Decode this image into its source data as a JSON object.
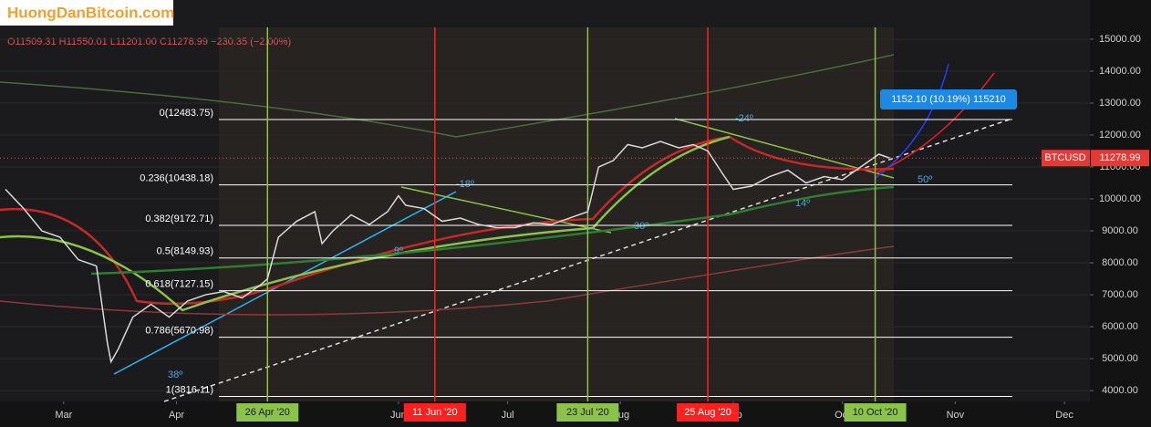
{
  "logo": "HuongDanBitcoin.com",
  "chart_data": {
    "type": "line",
    "title": "O11509.31 H11550.01 L11201.00 C11278.99 −230.35 (−2.00%)",
    "symbol": "BTCUSD",
    "last_price": {
      "value": 11278.99,
      "label": "11278.99"
    },
    "x": [
      45,
      50,
      55,
      60,
      65,
      70,
      73,
      74,
      76,
      80,
      85,
      90,
      95,
      100,
      105,
      110,
      115,
      117,
      120,
      125,
      130,
      132,
      135,
      140,
      145,
      150,
      153,
      155,
      160,
      165,
      170,
      175,
      180,
      185,
      190,
      195,
      200,
      205,
      208,
      212,
      216,
      220,
      225,
      230,
      234,
      238,
      242,
      245,
      250,
      255,
      260,
      265,
      270,
      275,
      280,
      285,
      288
    ],
    "series": [
      {
        "color": "#d9d9d9",
        "values": [
          10300,
          9700,
          9000,
          8800,
          8100,
          7900,
          5500,
          4900,
          5300,
          6300,
          6700,
          6300,
          6800,
          7000,
          7100,
          6900,
          7300,
          7500,
          8800,
          9300,
          9600,
          8600,
          9000,
          9500,
          9200,
          9600,
          10100,
          9800,
          9700,
          9300,
          9400,
          9200,
          9100,
          9100,
          9250,
          9200,
          9400,
          9600,
          11000,
          11200,
          11700,
          11600,
          11800,
          11600,
          11700,
          11500,
          10800,
          10300,
          10400,
          10700,
          10900,
          10500,
          10700,
          10600,
          11000,
          11400,
          11278.99
        ]
      }
    ],
    "xlim": [
      43.5,
      343
    ],
    "xticks": [
      {
        "value": 61,
        "label": "Mar"
      },
      {
        "value": 92,
        "label": "Apr"
      },
      {
        "value": 153,
        "label": "Jun"
      },
      {
        "value": 183,
        "label": "Jul"
      },
      {
        "value": 214,
        "label": "Aug"
      },
      {
        "value": 245,
        "label": "Sep"
      },
      {
        "value": 275,
        "label": "Oct"
      },
      {
        "value": 306,
        "label": "Nov"
      },
      {
        "value": 336,
        "label": "Dec"
      }
    ],
    "ylim": [
      3660,
      15370
    ],
    "yticks": [
      {
        "value": 4000,
        "label": "4000.00"
      },
      {
        "value": 5000,
        "label": "5000.00"
      },
      {
        "value": 6000,
        "label": "6000.00"
      },
      {
        "value": 7000,
        "label": "7000.00"
      },
      {
        "value": 8000,
        "label": "8000.00"
      },
      {
        "value": 9000,
        "label": "9000.00"
      },
      {
        "value": 10000,
        "label": "10000.00"
      },
      {
        "value": 11000,
        "label": "11000.00"
      },
      {
        "value": 12000,
        "label": "12000.00"
      },
      {
        "value": 13000,
        "label": "13000.00"
      },
      {
        "value": 14000,
        "label": "14000.00"
      },
      {
        "value": 15000,
        "label": "15000.00"
      }
    ],
    "fib_levels": [
      {
        "value": 12483.75,
        "label": "0(12483.75)"
      },
      {
        "value": 10438.18,
        "label": "0.236(10438.18)"
      },
      {
        "value": 9172.71,
        "label": "0.382(9172.71)"
      },
      {
        "value": 8149.93,
        "label": "0.5(8149.93)"
      },
      {
        "value": 7127.15,
        "label": "0.618(7127.15)"
      },
      {
        "value": 5670.98,
        "label": "0.786(5670.98)"
      },
      {
        "value": 3816.11,
        "label": "1(3816.11)"
      }
    ],
    "events": [
      {
        "value": 117,
        "label": "26 Apr '20",
        "color": "#8bc34a"
      },
      {
        "value": 163,
        "label": "11 Jun '20",
        "color": "#ff2020"
      },
      {
        "value": 205,
        "label": "23 Jul '20",
        "color": "#8bc34a"
      },
      {
        "value": 238,
        "label": "25 Aug '20",
        "color": "#ff2020"
      },
      {
        "value": 284,
        "label": "10 Oct '20",
        "color": "#8bc34a"
      }
    ],
    "annotations": {
      "measure": "1152.10 (10.19%) 115210",
      "angles": [
        "-24º",
        "-18º",
        "9º",
        "30º",
        "14º",
        "50º",
        "38º"
      ]
    }
  }
}
